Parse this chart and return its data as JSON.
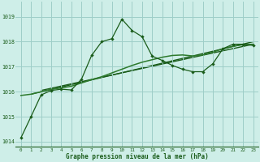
{
  "title": "Graphe pression niveau de la mer (hPa)",
  "background_color": "#ceeee8",
  "grid_color": "#9ecec8",
  "line_color_dark": "#1a5c1a",
  "line_color_mid": "#2d7a2d",
  "xlim": [
    -0.5,
    23.5
  ],
  "ylim": [
    1013.8,
    1019.6
  ],
  "yticks": [
    1014,
    1015,
    1016,
    1017,
    1018,
    1019
  ],
  "xticks": [
    0,
    1,
    2,
    3,
    4,
    5,
    6,
    7,
    8,
    9,
    10,
    11,
    12,
    13,
    14,
    15,
    16,
    17,
    18,
    19,
    20,
    21,
    22,
    23
  ],
  "series1_x": [
    0,
    1,
    2,
    3,
    4,
    5,
    6,
    7,
    8,
    9,
    10,
    11,
    12,
    13,
    14,
    15,
    16,
    17,
    18,
    19,
    20,
    21,
    22,
    23
  ],
  "series1_y": [
    1014.15,
    1015.0,
    1015.87,
    1016.05,
    1016.1,
    1016.07,
    1016.5,
    1017.45,
    1018.0,
    1018.12,
    1018.9,
    1018.45,
    1018.2,
    1017.42,
    1017.25,
    1017.05,
    1016.9,
    1016.8,
    1016.8,
    1017.12,
    1017.72,
    1017.9,
    1017.9,
    1017.85
  ],
  "series2_x": [
    0,
    1,
    2,
    3,
    4,
    5,
    6,
    7,
    8,
    9,
    10,
    11,
    12,
    13,
    14,
    15,
    16,
    17,
    18,
    19,
    20,
    21,
    22,
    23
  ],
  "series2_y": [
    1015.85,
    1015.9,
    1016.0,
    1016.1,
    1016.15,
    1016.22,
    1016.35,
    1016.48,
    1016.6,
    1016.75,
    1016.9,
    1017.05,
    1017.18,
    1017.28,
    1017.38,
    1017.45,
    1017.47,
    1017.43,
    1017.47,
    1017.58,
    1017.72,
    1017.82,
    1017.88,
    1017.9
  ],
  "trend1_x": [
    1,
    23
  ],
  "trend1_y": [
    1015.9,
    1018.0
  ],
  "trend2_x": [
    2,
    23
  ],
  "trend2_y": [
    1016.05,
    1017.9
  ]
}
